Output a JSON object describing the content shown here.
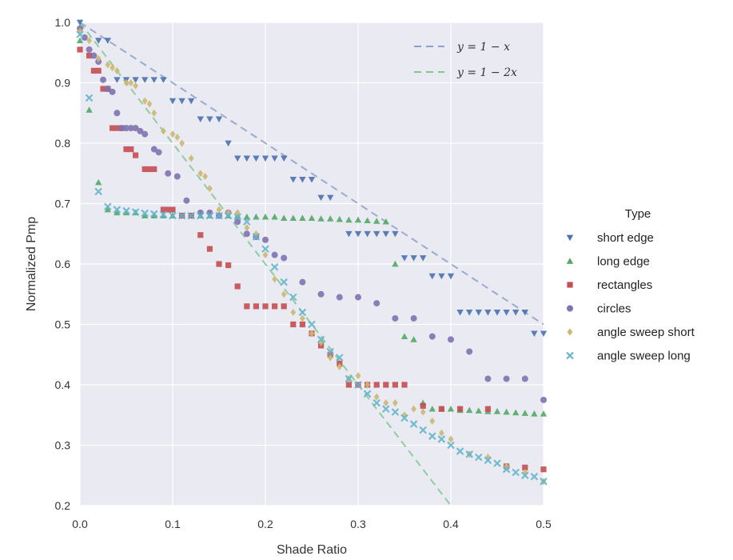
{
  "chart_data": {
    "type": "scatter",
    "xlabel": "Shade Ratio",
    "ylabel": "Normalized Pmp",
    "xlim": [
      0,
      0.5
    ],
    "ylim": [
      0.2,
      1.0
    ],
    "x_ticks": [
      "0.0",
      "0.1",
      "0.2",
      "0.3",
      "0.4",
      "0.5"
    ],
    "y_ticks": [
      "0.2",
      "0.3",
      "0.4",
      "0.5",
      "0.6",
      "0.7",
      "0.8",
      "0.9",
      "1.0"
    ],
    "grid": true,
    "legend": {
      "title": "Type",
      "placement": "right-outside"
    },
    "reference_lines": [
      {
        "label": "y = 1 − x",
        "slope": -1,
        "intercept": 1,
        "color": "#8da0cb"
      },
      {
        "label": "y = 1 − 2x",
        "slope": -2,
        "intercept": 1,
        "color": "#7fc98f"
      }
    ],
    "series": [
      {
        "name": "short edge",
        "marker": "triangle-down",
        "color": "#4c72b0",
        "x": [
          0.0,
          0.02,
          0.03,
          0.04,
          0.05,
          0.06,
          0.07,
          0.08,
          0.09,
          0.1,
          0.11,
          0.12,
          0.13,
          0.14,
          0.15,
          0.16,
          0.17,
          0.18,
          0.19,
          0.2,
          0.21,
          0.22,
          0.23,
          0.24,
          0.25,
          0.26,
          0.27,
          0.29,
          0.3,
          0.31,
          0.32,
          0.33,
          0.34,
          0.35,
          0.36,
          0.37,
          0.38,
          0.39,
          0.4,
          0.41,
          0.42,
          0.43,
          0.44,
          0.45,
          0.46,
          0.47,
          0.48,
          0.49,
          0.5
        ],
        "y": [
          1.0,
          0.97,
          0.97,
          0.905,
          0.905,
          0.905,
          0.905,
          0.905,
          0.905,
          0.87,
          0.87,
          0.87,
          0.84,
          0.84,
          0.84,
          0.8,
          0.775,
          0.775,
          0.775,
          0.775,
          0.775,
          0.775,
          0.74,
          0.74,
          0.74,
          0.71,
          0.71,
          0.65,
          0.65,
          0.65,
          0.65,
          0.65,
          0.65,
          0.61,
          0.61,
          0.61,
          0.58,
          0.58,
          0.58,
          0.52,
          0.52,
          0.52,
          0.52,
          0.52,
          0.52,
          0.52,
          0.52,
          0.485,
          0.485
        ]
      },
      {
        "name": "long edge",
        "marker": "triangle-up",
        "color": "#55a868",
        "x": [
          0.0,
          0.01,
          0.02,
          0.03,
          0.04,
          0.05,
          0.06,
          0.07,
          0.08,
          0.09,
          0.1,
          0.11,
          0.12,
          0.13,
          0.14,
          0.15,
          0.16,
          0.17,
          0.18,
          0.19,
          0.2,
          0.21,
          0.22,
          0.23,
          0.24,
          0.25,
          0.26,
          0.27,
          0.28,
          0.29,
          0.3,
          0.31,
          0.32,
          0.33,
          0.34,
          0.35,
          0.36,
          0.37,
          0.38,
          0.39,
          0.4,
          0.41,
          0.42,
          0.43,
          0.44,
          0.45,
          0.46,
          0.47,
          0.48,
          0.49,
          0.5
        ],
        "y": [
          0.97,
          0.855,
          0.735,
          0.69,
          0.685,
          0.685,
          0.685,
          0.68,
          0.68,
          0.68,
          0.68,
          0.68,
          0.68,
          0.68,
          0.68,
          0.68,
          0.68,
          0.68,
          0.678,
          0.678,
          0.678,
          0.678,
          0.676,
          0.676,
          0.676,
          0.676,
          0.675,
          0.675,
          0.674,
          0.673,
          0.673,
          0.672,
          0.671,
          0.67,
          0.6,
          0.48,
          0.475,
          0.37,
          0.36,
          0.36,
          0.36,
          0.358,
          0.358,
          0.357,
          0.356,
          0.356,
          0.355,
          0.354,
          0.353,
          0.352,
          0.352
        ]
      },
      {
        "name": "rectangles",
        "marker": "square",
        "color": "#c44e52",
        "x": [
          0.0,
          0.01,
          0.015,
          0.02,
          0.025,
          0.03,
          0.035,
          0.04,
          0.045,
          0.05,
          0.055,
          0.06,
          0.07,
          0.075,
          0.08,
          0.09,
          0.095,
          0.1,
          0.11,
          0.12,
          0.13,
          0.14,
          0.15,
          0.16,
          0.17,
          0.18,
          0.19,
          0.2,
          0.21,
          0.22,
          0.23,
          0.24,
          0.25,
          0.26,
          0.27,
          0.28,
          0.29,
          0.3,
          0.31,
          0.32,
          0.33,
          0.34,
          0.35,
          0.37,
          0.39,
          0.41,
          0.44,
          0.46,
          0.48,
          0.5
        ],
        "y": [
          0.955,
          0.945,
          0.92,
          0.92,
          0.89,
          0.89,
          0.825,
          0.825,
          0.825,
          0.79,
          0.79,
          0.78,
          0.757,
          0.757,
          0.757,
          0.69,
          0.69,
          0.69,
          0.68,
          0.68,
          0.648,
          0.625,
          0.6,
          0.598,
          0.563,
          0.53,
          0.53,
          0.53,
          0.53,
          0.53,
          0.5,
          0.5,
          0.485,
          0.465,
          0.45,
          0.435,
          0.4,
          0.4,
          0.4,
          0.4,
          0.4,
          0.4,
          0.4,
          0.365,
          0.36,
          0.36,
          0.36,
          0.265,
          0.263,
          0.26
        ]
      },
      {
        "name": "circles",
        "marker": "circle",
        "color": "#8172b2",
        "x": [
          0.0,
          0.005,
          0.01,
          0.015,
          0.02,
          0.025,
          0.03,
          0.035,
          0.04,
          0.045,
          0.05,
          0.055,
          0.06,
          0.065,
          0.07,
          0.08,
          0.085,
          0.095,
          0.105,
          0.115,
          0.13,
          0.14,
          0.15,
          0.16,
          0.17,
          0.18,
          0.19,
          0.2,
          0.21,
          0.22,
          0.24,
          0.26,
          0.28,
          0.3,
          0.32,
          0.34,
          0.36,
          0.38,
          0.4,
          0.42,
          0.44,
          0.46,
          0.48,
          0.5
        ],
        "y": [
          0.99,
          0.975,
          0.955,
          0.945,
          0.935,
          0.905,
          0.89,
          0.885,
          0.85,
          0.825,
          0.825,
          0.825,
          0.825,
          0.82,
          0.815,
          0.79,
          0.785,
          0.75,
          0.745,
          0.705,
          0.685,
          0.685,
          0.68,
          0.685,
          0.67,
          0.65,
          0.645,
          0.64,
          0.615,
          0.61,
          0.57,
          0.55,
          0.545,
          0.545,
          0.535,
          0.51,
          0.51,
          0.48,
          0.475,
          0.455,
          0.41,
          0.41,
          0.41,
          0.375
        ]
      },
      {
        "name": "angle sweep short",
        "marker": "diamond",
        "color": "#ccb974",
        "x": [
          0.0,
          0.01,
          0.02,
          0.03,
          0.035,
          0.04,
          0.05,
          0.055,
          0.06,
          0.07,
          0.075,
          0.08,
          0.09,
          0.1,
          0.105,
          0.11,
          0.12,
          0.13,
          0.135,
          0.14,
          0.15,
          0.16,
          0.17,
          0.18,
          0.19,
          0.2,
          0.21,
          0.22,
          0.23,
          0.24,
          0.25,
          0.26,
          0.27,
          0.28,
          0.29,
          0.3,
          0.31,
          0.32,
          0.33,
          0.34,
          0.35,
          0.36,
          0.37,
          0.38,
          0.39,
          0.4,
          0.42,
          0.44,
          0.46,
          0.48,
          0.5
        ],
        "y": [
          0.985,
          0.97,
          0.94,
          0.93,
          0.925,
          0.92,
          0.9,
          0.9,
          0.895,
          0.87,
          0.865,
          0.85,
          0.82,
          0.815,
          0.81,
          0.8,
          0.775,
          0.75,
          0.745,
          0.725,
          0.69,
          0.685,
          0.685,
          0.66,
          0.65,
          0.615,
          0.575,
          0.55,
          0.52,
          0.51,
          0.485,
          0.47,
          0.445,
          0.43,
          0.41,
          0.415,
          0.4,
          0.38,
          0.37,
          0.37,
          0.35,
          0.36,
          0.355,
          0.34,
          0.32,
          0.31,
          0.285,
          0.28,
          0.265,
          0.255,
          0.24
        ]
      },
      {
        "name": "angle sweep long",
        "marker": "x",
        "color": "#64b5cd",
        "x": [
          0.0,
          0.01,
          0.02,
          0.03,
          0.04,
          0.05,
          0.06,
          0.07,
          0.08,
          0.09,
          0.1,
          0.11,
          0.12,
          0.13,
          0.14,
          0.15,
          0.16,
          0.17,
          0.18,
          0.19,
          0.2,
          0.21,
          0.22,
          0.23,
          0.24,
          0.25,
          0.26,
          0.27,
          0.28,
          0.29,
          0.3,
          0.31,
          0.32,
          0.33,
          0.34,
          0.35,
          0.36,
          0.37,
          0.38,
          0.39,
          0.4,
          0.41,
          0.42,
          0.43,
          0.44,
          0.45,
          0.46,
          0.47,
          0.48,
          0.49,
          0.5
        ],
        "y": [
          0.98,
          0.875,
          0.72,
          0.695,
          0.69,
          0.688,
          0.686,
          0.684,
          0.683,
          0.682,
          0.68,
          0.68,
          0.68,
          0.68,
          0.68,
          0.68,
          0.68,
          0.678,
          0.67,
          0.645,
          0.625,
          0.595,
          0.57,
          0.545,
          0.52,
          0.5,
          0.475,
          0.455,
          0.445,
          0.41,
          0.4,
          0.385,
          0.37,
          0.36,
          0.355,
          0.345,
          0.335,
          0.325,
          0.315,
          0.31,
          0.3,
          0.29,
          0.285,
          0.28,
          0.275,
          0.27,
          0.26,
          0.255,
          0.25,
          0.248,
          0.24
        ]
      }
    ]
  }
}
